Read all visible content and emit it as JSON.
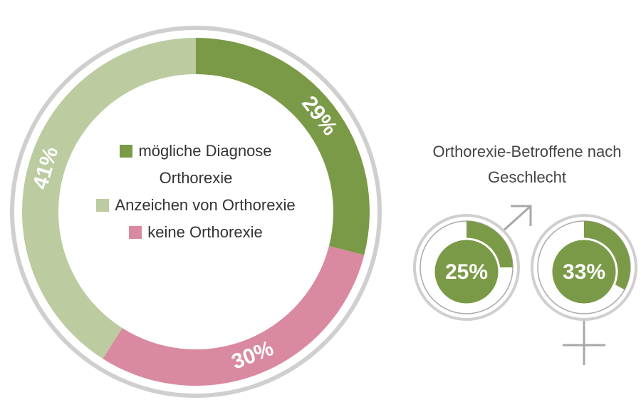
{
  "chart_data": [
    {
      "type": "donut",
      "categories": [
        "mögliche Diagnose Orthorexie",
        "keine Orthorexie",
        "Anzeichen von Orthorexie"
      ],
      "values": [
        29,
        30,
        41
      ],
      "value_labels": [
        "29%",
        "30%",
        "41%"
      ],
      "colors": [
        "#7a9a47",
        "#d98aa0",
        "#bccba0"
      ]
    },
    {
      "type": "gender",
      "title": "Orthorexie-Betroffene nach Geschlecht",
      "categories": [
        null,
        null
      ],
      "values": [
        25,
        33
      ],
      "value_labels": [
        "25%",
        "33%"
      ],
      "color": "#7a9a47"
    }
  ]
}
